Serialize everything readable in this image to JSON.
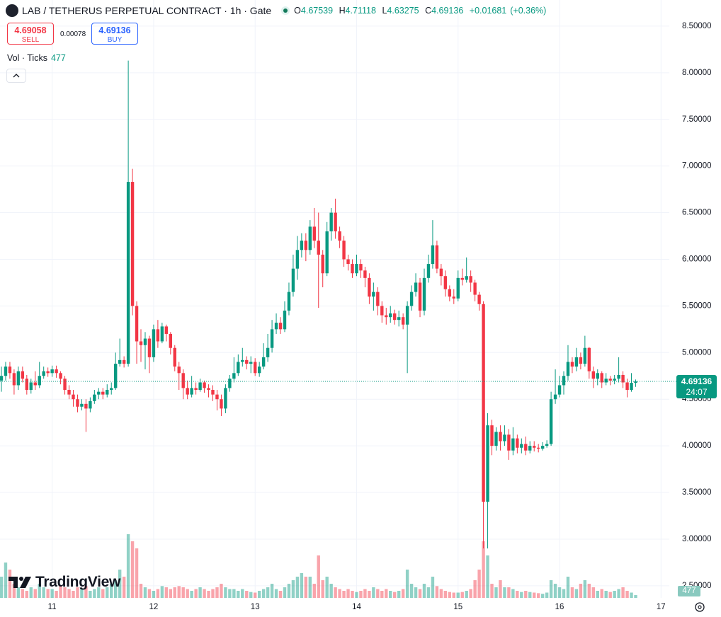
{
  "ui": {
    "title": "LAB / TETHERUS PERPETUAL CONTRACT · 1h · Gate",
    "ohlc_labels": [
      "O",
      "H",
      "L",
      "C"
    ],
    "change": "+0.01681",
    "change_pct": "(+0.36%)",
    "sell_price": "4.69058",
    "sell": "SELL",
    "spread": "0.00078",
    "buy": "BUY",
    "volume_label": "Vol · Ticks",
    "countdown": "24:07",
    "brand": "TradingView"
  },
  "chart_data": {
    "type": "candlestick",
    "grid": true,
    "up_color": "#089981",
    "down_color": "#f23645",
    "ylim": [
      2.37,
      8.78
    ],
    "volume_lim": [
      0,
      12000
    ],
    "yticks": [
      {
        "value": 2.5,
        "label": "2.50000"
      },
      {
        "value": 3,
        "label": "3.00000"
      },
      {
        "value": 3.5,
        "label": "3.50000"
      },
      {
        "value": 4,
        "label": "4.00000"
      },
      {
        "value": 4.5,
        "label": "4.50000"
      },
      {
        "value": 5,
        "label": "5.00000"
      },
      {
        "value": 5.5,
        "label": "5.50000"
      },
      {
        "value": 6,
        "label": "6.00000"
      },
      {
        "value": 6.5,
        "label": "6.50000"
      },
      {
        "value": 7,
        "label": "7.00000"
      },
      {
        "value": 7.5,
        "label": "7.50000"
      },
      {
        "value": 8,
        "label": "8.00000"
      },
      {
        "value": 8.5,
        "label": "8.50000"
      }
    ],
    "categories": [
      null,
      null,
      null,
      null,
      null,
      null,
      null,
      null,
      null,
      null,
      null,
      null,
      "11",
      null,
      null,
      null,
      null,
      null,
      null,
      null,
      null,
      null,
      null,
      null,
      null,
      null,
      null,
      null,
      null,
      null,
      null,
      null,
      null,
      null,
      null,
      null,
      "12",
      null,
      null,
      null,
      null,
      null,
      null,
      null,
      null,
      null,
      null,
      null,
      null,
      null,
      null,
      null,
      null,
      null,
      null,
      null,
      null,
      null,
      null,
      null,
      "13",
      null,
      null,
      null,
      null,
      null,
      null,
      null,
      null,
      null,
      null,
      null,
      null,
      null,
      null,
      null,
      null,
      null,
      null,
      null,
      null,
      null,
      null,
      null,
      "14",
      null,
      null,
      null,
      null,
      null,
      null,
      null,
      null,
      null,
      null,
      null,
      null,
      null,
      null,
      null,
      null,
      null,
      null,
      null,
      null,
      null,
      null,
      null,
      "15",
      null,
      null,
      null,
      null,
      null,
      null,
      null,
      null,
      null,
      null,
      null,
      null,
      null,
      null,
      null,
      null,
      null,
      null,
      null,
      null,
      null,
      null,
      null,
      "16",
      null,
      null,
      null,
      null,
      null,
      null,
      null,
      null,
      null,
      null,
      null,
      null,
      null,
      null,
      null,
      null,
      null,
      null,
      null,
      null,
      null,
      null,
      null,
      "17"
    ],
    "open": [
      4.7,
      4.75,
      4.85,
      4.78,
      4.65,
      4.8,
      4.72,
      4.6,
      4.68,
      4.65,
      4.75,
      4.8,
      4.78,
      4.82,
      4.78,
      4.72,
      4.6,
      4.55,
      4.5,
      4.42,
      4.45,
      4.4,
      4.48,
      4.55,
      4.58,
      4.55,
      4.6,
      4.62,
      4.88,
      4.92,
      4.88,
      6.83,
      5.5,
      5.12,
      5.08,
      5.15,
      4.95,
      5.25,
      5.12,
      5.28,
      5.2,
      5.05,
      4.85,
      4.78,
      4.62,
      4.55,
      4.62,
      4.6,
      4.68,
      4.62,
      4.6,
      4.55,
      4.5,
      4.4,
      4.62,
      4.72,
      4.78,
      4.9,
      4.92,
      4.88,
      4.9,
      4.78,
      4.85,
      4.95,
      5.05,
      5.25,
      5.32,
      5.25,
      5.45,
      5.65,
      5.9,
      6.1,
      6.2,
      6.1,
      6.35,
      6.2,
      6.05,
      5.85,
      6.3,
      6.5,
      6.3,
      6.2,
      6.0,
      5.95,
      5.85,
      5.95,
      5.88,
      5.8,
      5.6,
      5.65,
      5.5,
      5.4,
      5.38,
      5.42,
      5.35,
      5.38,
      5.3,
      5.5,
      5.65,
      5.75,
      5.45,
      5.8,
      5.95,
      6.15,
      5.9,
      5.82,
      5.68,
      5.6,
      5.58,
      5.8,
      5.78,
      5.82,
      5.75,
      5.62,
      5.52,
      3.4,
      4.22,
      4.0,
      4.15,
      4.05,
      4.12,
      3.95,
      4.08,
      3.98,
      4.02,
      3.95,
      4.0,
      3.98,
      3.97,
      4.0,
      4.02,
      4.5,
      4.55,
      4.65,
      4.75,
      4.9,
      4.85,
      4.95,
      4.88,
      5.05,
      4.8,
      4.72,
      4.78,
      4.68,
      4.72,
      4.7,
      4.72,
      4.76,
      4.68,
      4.6,
      4.67539,
      null,
      null,
      null,
      null,
      null,
      null
    ],
    "high": [
      4.85,
      4.9,
      4.9,
      4.82,
      4.85,
      4.85,
      4.76,
      4.72,
      4.8,
      4.9,
      4.85,
      4.84,
      4.86,
      4.86,
      4.8,
      4.75,
      4.65,
      4.6,
      4.55,
      4.5,
      4.5,
      4.52,
      4.6,
      4.62,
      4.62,
      4.66,
      4.68,
      5.0,
      5.15,
      4.96,
      8.13,
      6.97,
      5.55,
      5.25,
      5.22,
      5.18,
      5.3,
      5.35,
      5.32,
      5.3,
      5.22,
      5.08,
      4.9,
      4.82,
      4.7,
      4.75,
      4.68,
      4.72,
      4.7,
      4.66,
      4.65,
      4.6,
      4.55,
      4.66,
      4.76,
      4.95,
      4.98,
      5.05,
      4.96,
      4.96,
      4.94,
      4.9,
      5.1,
      5.2,
      5.35,
      5.42,
      5.38,
      5.55,
      5.75,
      6.05,
      6.25,
      6.28,
      6.28,
      6.42,
      6.55,
      6.5,
      6.1,
      6.4,
      6.55,
      6.65,
      6.35,
      6.25,
      6.05,
      6.0,
      6.05,
      6.0,
      5.92,
      5.85,
      5.75,
      5.7,
      5.55,
      5.48,
      5.5,
      5.46,
      5.45,
      5.42,
      5.55,
      5.72,
      5.85,
      5.8,
      5.9,
      6.05,
      6.42,
      6.2,
      5.95,
      5.88,
      5.72,
      5.68,
      5.88,
      5.9,
      6.02,
      5.88,
      5.78,
      5.65,
      5.55,
      4.35,
      4.28,
      4.2,
      4.22,
      4.22,
      4.18,
      4.2,
      4.12,
      4.08,
      4.1,
      4.05,
      4.05,
      4.02,
      4.04,
      4.06,
      4.58,
      4.82,
      4.75,
      4.8,
      5.08,
      4.95,
      5.05,
      5.0,
      5.18,
      5.06,
      4.85,
      4.82,
      4.8,
      4.78,
      4.75,
      4.76,
      4.95,
      4.8,
      4.72,
      4.78,
      4.71118,
      null,
      null,
      null,
      null,
      null,
      null
    ],
    "low": [
      4.58,
      4.7,
      4.72,
      4.55,
      4.6,
      4.68,
      4.55,
      4.56,
      4.6,
      4.62,
      4.72,
      4.74,
      4.74,
      4.73,
      4.66,
      4.55,
      4.5,
      4.42,
      4.36,
      4.38,
      4.15,
      4.36,
      4.45,
      4.5,
      4.5,
      4.52,
      4.55,
      4.6,
      4.85,
      4.84,
      4.85,
      5.4,
      4.88,
      4.9,
      4.82,
      4.78,
      4.9,
      5.05,
      5.1,
      5.12,
      4.98,
      4.8,
      4.6,
      4.5,
      4.5,
      4.52,
      4.55,
      4.58,
      4.57,
      4.52,
      4.48,
      4.38,
      4.32,
      4.35,
      4.58,
      4.68,
      4.75,
      4.85,
      4.82,
      4.78,
      4.75,
      4.74,
      4.82,
      4.9,
      5.0,
      5.2,
      5.2,
      5.22,
      5.4,
      5.6,
      5.78,
      6.02,
      5.98,
      6.05,
      6.12,
      5.48,
      5.7,
      5.82,
      6.2,
      6.22,
      6.12,
      5.92,
      5.88,
      5.8,
      5.82,
      5.8,
      5.7,
      5.52,
      5.45,
      5.4,
      5.32,
      5.3,
      5.32,
      5.3,
      5.28,
      5.25,
      4.78,
      5.45,
      5.6,
      5.38,
      5.4,
      5.75,
      5.9,
      5.85,
      5.72,
      5.6,
      5.55,
      5.52,
      5.55,
      5.72,
      5.75,
      5.65,
      5.55,
      5.45,
      2.9,
      2.9,
      3.9,
      3.95,
      3.95,
      4.0,
      3.85,
      3.9,
      3.92,
      3.92,
      3.9,
      3.92,
      3.94,
      3.93,
      3.95,
      3.98,
      4.0,
      4.45,
      4.52,
      4.55,
      4.7,
      4.78,
      4.8,
      4.82,
      4.85,
      4.72,
      4.62,
      4.65,
      4.62,
      4.65,
      4.65,
      4.66,
      4.68,
      4.62,
      4.52,
      4.58,
      4.63275,
      null,
      null,
      null,
      null,
      null,
      null
    ],
    "close": [
      4.75,
      4.85,
      4.78,
      4.65,
      4.8,
      4.72,
      4.6,
      4.68,
      4.65,
      4.75,
      4.8,
      4.78,
      4.82,
      4.78,
      4.72,
      4.6,
      4.55,
      4.5,
      4.42,
      4.45,
      4.4,
      4.48,
      4.55,
      4.58,
      4.55,
      4.6,
      4.62,
      4.88,
      4.92,
      4.88,
      6.83,
      5.5,
      5.12,
      5.08,
      5.15,
      4.95,
      5.25,
      5.12,
      5.28,
      5.2,
      5.05,
      4.85,
      4.78,
      4.62,
      4.55,
      4.62,
      4.6,
      4.68,
      4.62,
      4.6,
      4.55,
      4.5,
      4.4,
      4.62,
      4.72,
      4.78,
      4.9,
      4.92,
      4.88,
      4.9,
      4.78,
      4.85,
      4.95,
      5.05,
      5.25,
      5.32,
      5.25,
      5.45,
      5.65,
      5.9,
      6.1,
      6.2,
      6.1,
      6.35,
      6.2,
      6.05,
      5.85,
      6.3,
      6.5,
      6.3,
      6.2,
      6.0,
      5.95,
      5.85,
      5.95,
      5.88,
      5.8,
      5.6,
      5.65,
      5.5,
      5.4,
      5.38,
      5.42,
      5.35,
      5.38,
      5.3,
      5.5,
      5.65,
      5.75,
      5.45,
      5.8,
      5.95,
      6.15,
      5.9,
      5.82,
      5.68,
      5.6,
      5.58,
      5.8,
      5.78,
      5.82,
      5.75,
      5.62,
      5.52,
      3.4,
      4.22,
      4.0,
      4.15,
      4.05,
      4.12,
      3.95,
      4.08,
      3.98,
      4.02,
      3.95,
      4.0,
      3.98,
      3.97,
      4.0,
      4.02,
      4.5,
      4.55,
      4.65,
      4.75,
      4.9,
      4.85,
      4.95,
      4.88,
      5.05,
      4.8,
      4.72,
      4.78,
      4.68,
      4.72,
      4.7,
      4.72,
      4.76,
      4.68,
      4.6,
      4.67539,
      4.69136,
      null,
      null,
      null,
      null,
      null,
      null
    ],
    "volume": [
      3600,
      6000,
      4800,
      2400,
      1800,
      1500,
      1200,
      1800,
      1500,
      2400,
      1800,
      1500,
      1500,
      1200,
      2000,
      1800,
      1500,
      1200,
      1800,
      1500,
      2000,
      1200,
      1500,
      1800,
      1500,
      1800,
      2400,
      3000,
      4800,
      3600,
      10800,
      9600,
      8400,
      2400,
      1800,
      1500,
      1200,
      1500,
      2000,
      1800,
      1500,
      1800,
      2000,
      1800,
      1500,
      1200,
      1500,
      1800,
      1500,
      1200,
      1500,
      1800,
      2400,
      1800,
      1500,
      1500,
      1200,
      1500,
      1200,
      1000,
      900,
      1200,
      1500,
      1800,
      2400,
      1500,
      1200,
      1800,
      2400,
      3000,
      3600,
      4200,
      3600,
      3600,
      2400,
      7200,
      3000,
      3600,
      2400,
      1800,
      1500,
      1200,
      1500,
      1200,
      1000,
      1200,
      1500,
      1200,
      1800,
      1500,
      1200,
      1500,
      1200,
      1000,
      1200,
      1500,
      4800,
      2400,
      1800,
      1500,
      2400,
      1800,
      3600,
      2000,
      1500,
      1200,
      1000,
      900,
      900,
      1000,
      1200,
      1500,
      3000,
      4800,
      9600,
      7200,
      2400,
      1800,
      3000,
      1800,
      1800,
      1500,
      1200,
      1000,
      1200,
      1000,
      900,
      800,
      700,
      900,
      3000,
      2400,
      1800,
      1500,
      3600,
      1800,
      1500,
      2400,
      3000,
      2400,
      1800,
      1200,
      1500,
      1200,
      1000,
      1200,
      1500,
      1800,
      1200,
      900,
      477,
      null,
      null,
      null,
      null,
      null,
      null
    ]
  }
}
